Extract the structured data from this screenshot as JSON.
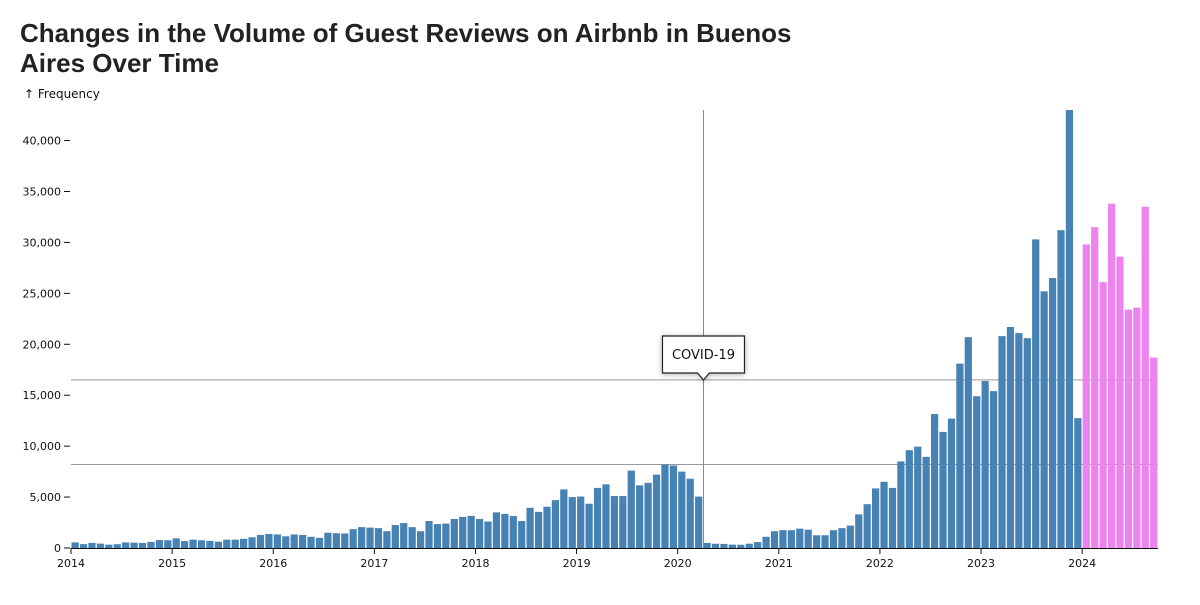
{
  "chart_data": {
    "type": "bar",
    "title": "Changes in the Volume of Guest Reviews on Airbnb in Buenos Aires Over Time",
    "ylabel": "↑ Frequency",
    "xlabel": "",
    "ylim": [
      0,
      43000
    ],
    "yticks": [
      0,
      5000,
      10000,
      15000,
      20000,
      25000,
      30000,
      35000,
      40000
    ],
    "xticks": [
      "2014",
      "2015",
      "2016",
      "2017",
      "2018",
      "2019",
      "2020",
      "2021",
      "2022",
      "2023",
      "2024"
    ],
    "grid": false,
    "x_start": "2014-01",
    "series": [
      {
        "color": "#4682b4",
        "values": [
          550,
          380,
          500,
          430,
          330,
          370,
          550,
          520,
          500,
          600,
          780,
          760,
          950,
          680,
          820,
          760,
          700,
          620,
          820,
          820,
          900,
          1050,
          1280,
          1380,
          1330,
          1150,
          1330,
          1280,
          1100,
          1000,
          1500,
          1450,
          1430,
          1850,
          2050,
          2000,
          1950,
          1650,
          2250,
          2450,
          2050,
          1650,
          2650,
          2350,
          2400,
          2850,
          3050,
          3150,
          2850,
          2600,
          3500,
          3350,
          3150,
          2650,
          3950,
          3550,
          4050,
          4700,
          5750,
          5000,
          5050,
          4350,
          5900,
          6250,
          5100,
          5100,
          7600,
          6150,
          6400,
          7200,
          8200,
          8100,
          7500,
          6800,
          5050,
          500,
          420,
          400,
          330,
          320,
          420,
          580,
          1100,
          1650,
          1750,
          1750,
          1900,
          1800,
          1250,
          1250,
          1750,
          1950,
          2200,
          3300,
          4300,
          5850,
          6500,
          5900,
          8500,
          9600,
          9950,
          8950,
          13150,
          11400,
          12700,
          18100,
          20700,
          14900,
          16400,
          15400,
          20800,
          21700,
          21100,
          20600,
          30300,
          25200,
          26500,
          31200,
          43000,
          12750
        ]
      },
      {
        "color": "#ee82ee",
        "values": [
          29800,
          31500,
          26100,
          33800,
          28600,
          23400,
          23600,
          33500,
          18700
        ]
      }
    ],
    "reference_lines": [
      16500,
      8200
    ],
    "annotation": {
      "text": "COVID-19",
      "date": "2020-04"
    }
  }
}
